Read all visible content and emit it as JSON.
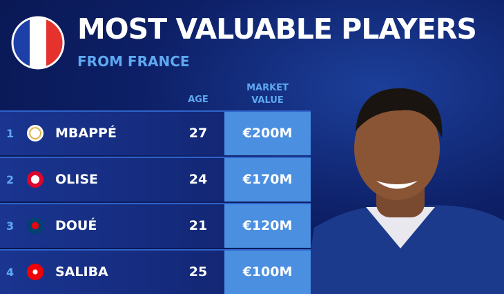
{
  "header": {
    "title": "MOST VALUABLE PLAYERS",
    "subtitle": "FROM FRANCE"
  },
  "table": {
    "columns": [
      "AGE",
      "MARKET VALUE"
    ],
    "rows": [
      {
        "rank": 1,
        "name": "MBAPPÉ",
        "age": 27,
        "value": "€200M"
      },
      {
        "rank": 2,
        "name": "OLISE",
        "age": 24,
        "value": "€170M"
      },
      {
        "rank": 3,
        "name": "DOUÉ",
        "age": 21,
        "value": "€120M"
      },
      {
        "rank": 4,
        "name": "SALIBA",
        "age": 25,
        "value": "€100M"
      }
    ]
  }
}
